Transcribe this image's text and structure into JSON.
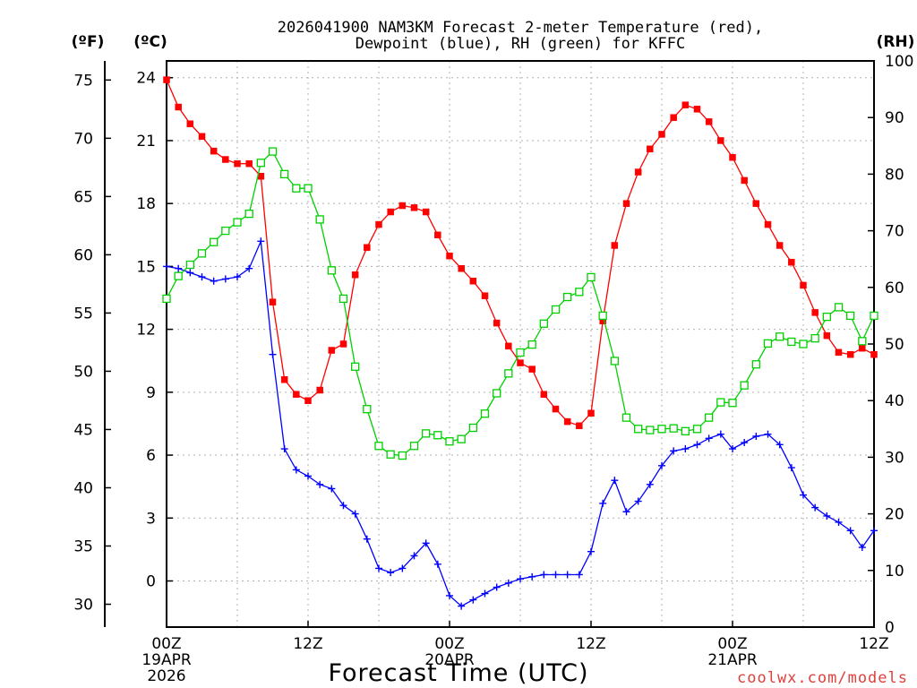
{
  "chart_data": {
    "type": "line",
    "title_line1": "2026041900 NAM3KM Forecast 2-meter Temperature (red),",
    "title_line2": "Dewpoint (blue), RH (green) for KFFC",
    "xlabel": "Forecast Time (UTC)",
    "credit": "coolwx.com/models",
    "unit_labels": {
      "fahrenheit": "(ºF)",
      "celsius": "(ºC)",
      "rh": "(RH)"
    },
    "x_hours_range": [
      0,
      60
    ],
    "celsius_range": [
      -2.2,
      24.8
    ],
    "rh_range": [
      0,
      100
    ],
    "fahrenheit_ticks": [
      "75",
      "70",
      "65",
      "60",
      "55",
      "50",
      "45",
      "40",
      "35",
      "30"
    ],
    "celsius_ticks": [
      "24",
      "21",
      "18",
      "15",
      "12",
      "9",
      "6",
      "3",
      "0"
    ],
    "rh_ticks": [
      "100",
      "90",
      "80",
      "70",
      "60",
      "50",
      "40",
      "30",
      "20",
      "10",
      "0"
    ],
    "x_tick_labels": [
      {
        "hour": 0,
        "time": "00Z",
        "date": "19APR",
        "year": "2026"
      },
      {
        "hour": 12,
        "time": "12Z",
        "date": "",
        "year": ""
      },
      {
        "hour": 24,
        "time": "00Z",
        "date": "20APR",
        "year": ""
      },
      {
        "hour": 36,
        "time": "12Z",
        "date": "",
        "year": ""
      },
      {
        "hour": 48,
        "time": "00Z",
        "date": "21APR",
        "year": ""
      },
      {
        "hour": 60,
        "time": "12Z",
        "date": "",
        "year": ""
      }
    ],
    "x_hours": [
      0,
      1,
      2,
      3,
      4,
      5,
      6,
      7,
      8,
      9,
      10,
      11,
      12,
      13,
      14,
      15,
      16,
      17,
      18,
      19,
      20,
      21,
      22,
      23,
      24,
      25,
      26,
      27,
      28,
      29,
      30,
      31,
      32,
      33,
      34,
      35,
      36,
      37,
      38,
      39,
      40,
      41,
      42,
      43,
      44,
      45,
      46,
      47,
      48,
      49,
      50,
      51,
      52,
      53,
      54,
      55,
      56,
      57,
      58,
      59,
      60
    ],
    "series": [
      {
        "name": "Temperature",
        "unit": "C",
        "color": "#ff0000",
        "marker": "filled-square",
        "values": [
          23.9,
          22.6,
          21.8,
          21.2,
          20.5,
          20.1,
          19.9,
          19.9,
          19.3,
          13.3,
          9.6,
          8.9,
          8.6,
          9.1,
          11.0,
          11.3,
          14.6,
          15.9,
          17.0,
          17.6,
          17.9,
          17.8,
          17.6,
          16.5,
          15.5,
          14.9,
          14.3,
          13.6,
          12.3,
          11.2,
          10.4,
          10.1,
          8.9,
          8.2,
          7.6,
          7.4,
          8.0,
          12.4,
          16.0,
          18.0,
          19.5,
          20.6,
          21.3,
          22.1,
          22.7,
          22.5,
          21.9,
          21.0,
          20.2,
          19.1,
          18.0,
          17.0,
          16.0,
          15.2,
          14.1,
          12.8,
          11.7,
          10.9,
          10.8,
          11.1,
          10.8
        ]
      },
      {
        "name": "Dewpoint",
        "unit": "C",
        "color": "#0000ff",
        "marker": "plus",
        "values": [
          15.0,
          14.9,
          14.7,
          14.5,
          14.3,
          14.4,
          14.5,
          14.9,
          16.2,
          10.8,
          6.3,
          5.3,
          5.0,
          4.6,
          4.4,
          3.6,
          3.2,
          2.0,
          0.6,
          0.4,
          0.6,
          1.2,
          1.8,
          0.8,
          -0.7,
          -1.2,
          -0.9,
          -0.6,
          -0.3,
          -0.1,
          0.1,
          0.2,
          0.3,
          0.3,
          0.3,
          0.3,
          1.4,
          3.7,
          4.8,
          3.3,
          3.8,
          4.6,
          5.5,
          6.2,
          6.3,
          6.5,
          6.8,
          7.0,
          6.3,
          6.6,
          6.9,
          7.0,
          6.5,
          5.4,
          4.1,
          3.5,
          3.1,
          2.8,
          2.4,
          1.6,
          2.4
        ]
      },
      {
        "name": "RH",
        "unit": "%",
        "color": "#00d000",
        "marker": "open-square",
        "values": [
          58,
          62,
          64,
          66,
          68,
          70,
          71.5,
          73,
          82,
          84,
          80,
          77.5,
          77.5,
          72,
          63,
          58,
          46,
          38.5,
          32,
          30.5,
          30.3,
          32,
          34.2,
          33.9,
          32.8,
          33.2,
          35.2,
          37.7,
          41.3,
          44.8,
          48.5,
          49.9,
          53.6,
          56.1,
          58.3,
          59.2,
          61.8,
          55,
          47,
          37,
          35,
          34.8,
          35,
          35.1,
          34.6,
          35,
          37,
          39.7,
          39.6,
          42.7,
          46.4,
          50.1,
          51.3,
          50.4,
          50,
          51,
          54.8,
          56.5,
          55,
          50.5,
          55
        ]
      }
    ]
  }
}
